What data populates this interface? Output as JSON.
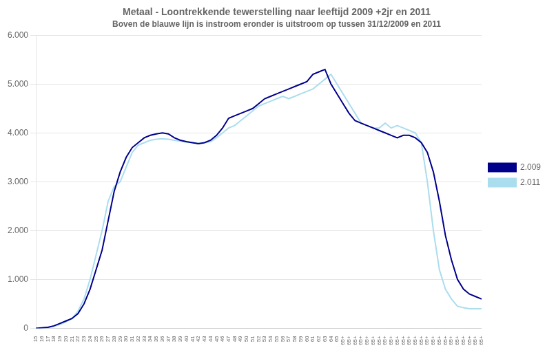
{
  "chart_data": {
    "type": "line",
    "title": "Metaal - Loontrekkende tewerstelling naar leeftijd 2009 +2jr en 2011",
    "subtitle": "Boven de blauwe lijn is instroom eronder is uitstroom op tussen 31/12/2009 en 2011",
    "categories": [
      "15",
      "16",
      "17",
      "18",
      "19",
      "20",
      "21",
      "22",
      "23",
      "24",
      "25",
      "26",
      "27",
      "28",
      "29",
      "30",
      "31",
      "32",
      "33",
      "34",
      "35",
      "36",
      "37",
      "38",
      "39",
      "40",
      "41",
      "42",
      "43",
      "44",
      "45",
      "46",
      "47",
      "48",
      "49",
      "50",
      "51",
      "52",
      "53",
      "54",
      "55",
      "56",
      "57",
      "58",
      "59",
      "60",
      "61",
      "62",
      "63",
      "64",
      "65",
      "65+",
      "65+",
      "65+",
      "65+",
      "65+",
      "65+",
      "65+",
      "65+",
      "65+",
      "65+",
      "65+",
      "65+",
      "65+",
      "65+",
      "65+",
      "65+",
      "65+",
      "65+",
      "65+",
      "65+",
      "65+",
      "65+",
      "65+",
      "65+"
    ],
    "series": [
      {
        "name": "2.009",
        "color": "#00008B",
        "values": [
          0,
          10,
          20,
          50,
          100,
          150,
          200,
          300,
          500,
          800,
          1200,
          1600,
          2200,
          2800,
          3200,
          3500,
          3700,
          3800,
          3900,
          3950,
          3980,
          4000,
          3980,
          3900,
          3850,
          3820,
          3800,
          3780,
          3800,
          3850,
          3950,
          4100,
          4300,
          4350,
          4400,
          4450,
          4500,
          4600,
          4700,
          4750,
          4800,
          4850,
          4900,
          4950,
          5000,
          5050,
          5200,
          5250,
          5300,
          5000,
          4800,
          4600,
          4400,
          4250,
          4200,
          4150,
          4100,
          4050,
          4000,
          3950,
          3900,
          3950,
          3950,
          3900,
          3800,
          3600,
          3200,
          2600,
          1900,
          1400,
          1000,
          800,
          700,
          650,
          600
        ]
      },
      {
        "name": "2.011",
        "color": "#AADDEE",
        "values": [
          0,
          5,
          15,
          40,
          80,
          130,
          200,
          350,
          600,
          1000,
          1500,
          2000,
          2600,
          2900,
          3000,
          3300,
          3600,
          3750,
          3800,
          3850,
          3870,
          3880,
          3870,
          3850,
          3830,
          3810,
          3800,
          3790,
          3800,
          3820,
          3900,
          4000,
          4100,
          4150,
          4250,
          4350,
          4450,
          4550,
          4600,
          4650,
          4700,
          4750,
          4700,
          4750,
          4800,
          4850,
          4900,
          5000,
          5100,
          5200,
          5000,
          4800,
          4600,
          4400,
          4200,
          4150,
          4100,
          4100,
          4200,
          4100,
          4150,
          4100,
          4050,
          4000,
          3800,
          3000,
          2000,
          1200,
          800,
          600,
          450,
          420,
          400,
          400,
          400
        ]
      }
    ],
    "ylim": [
      0,
      6000
    ],
    "yticks": [
      0,
      {
        "value": 1000,
        "label": "1.000"
      },
      {
        "value": 2000,
        "label": "2.000"
      },
      {
        "value": 3000,
        "label": "3.000"
      },
      {
        "value": 4000,
        "label": "4.000"
      },
      {
        "value": 5000,
        "label": "5.000"
      },
      {
        "value": 6000,
        "label": "6.000"
      }
    ],
    "grid": "y",
    "legend": "right"
  }
}
